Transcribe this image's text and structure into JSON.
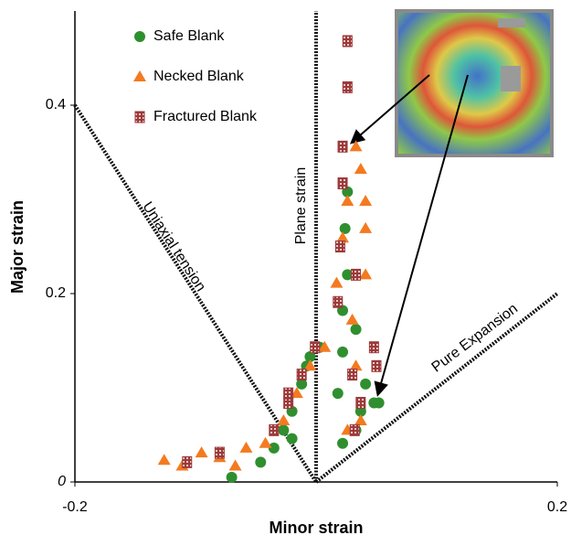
{
  "chart_data": {
    "type": "scatter",
    "xlabel": "Minor strain",
    "ylabel": "Major strain",
    "xlim": [
      -0.2,
      0.2
    ],
    "ylim": [
      0,
      0.5
    ],
    "xticks": [
      -0.2,
      0.2
    ],
    "yticks": [
      0,
      0.2,
      0.4
    ],
    "legend": "top-left",
    "series": [
      {
        "name": "Safe Blank",
        "color": "#2f8f2f",
        "marker": "circle",
        "x": [
          -0.07,
          -0.046,
          -0.035,
          -0.027,
          -0.02,
          -0.012,
          -0.005,
          0.003,
          -0.008,
          0.018,
          0.022,
          0.022,
          0.026,
          0.024,
          0.026,
          0.033,
          0.041,
          0.048,
          0.052,
          0.022,
          0.033,
          0.037,
          -0.02
        ],
        "values": [
          0.005,
          0.021,
          0.036,
          0.055,
          0.075,
          0.104,
          0.133,
          0.143,
          0.123,
          0.094,
          0.138,
          0.182,
          0.22,
          0.269,
          0.308,
          0.162,
          0.104,
          0.084,
          0.084,
          0.041,
          0.055,
          0.075,
          0.046
        ]
      },
      {
        "name": "Necked Blank",
        "color": "#f47a20",
        "marker": "triangle",
        "x": [
          -0.126,
          -0.111,
          -0.095,
          -0.08,
          -0.067,
          -0.058,
          -0.042,
          -0.027,
          -0.016,
          -0.005,
          0.007,
          0.017,
          0.022,
          0.026,
          0.033,
          0.037,
          0.041,
          0.041,
          0.041,
          0.03,
          0.033,
          0.037,
          0.026
        ],
        "values": [
          0.023,
          0.017,
          0.031,
          0.026,
          0.017,
          0.036,
          0.041,
          0.065,
          0.094,
          0.123,
          0.143,
          0.211,
          0.259,
          0.298,
          0.356,
          0.332,
          0.298,
          0.269,
          0.22,
          0.172,
          0.123,
          0.065,
          0.055
        ]
      },
      {
        "name": "Fractured Blank",
        "color": "#9c3a3a",
        "marker": "square",
        "x": [
          -0.107,
          -0.08,
          -0.035,
          -0.023,
          -0.023,
          -0.012,
          -0.001,
          0.026,
          0.026,
          0.022,
          0.022,
          0.02,
          0.018,
          0.033,
          0.03,
          0.037,
          0.032,
          0.048,
          0.05
        ],
        "values": [
          0.021,
          0.031,
          0.055,
          0.084,
          0.094,
          0.114,
          0.143,
          0.468,
          0.419,
          0.356,
          0.317,
          0.25,
          0.191,
          0.22,
          0.114,
          0.084,
          0.055,
          0.143,
          0.123
        ]
      }
    ],
    "reference_lines": [
      {
        "label": "Uniaxial tension",
        "x": [
          -0.2,
          0
        ],
        "y": [
          0.4,
          0
        ]
      },
      {
        "label": "Plane strain",
        "x": [
          0,
          0
        ],
        "y": [
          0,
          0.5
        ]
      },
      {
        "label": "Pure Expansion",
        "x": [
          0,
          0.2
        ],
        "y": [
          0,
          0.2
        ]
      }
    ]
  }
}
